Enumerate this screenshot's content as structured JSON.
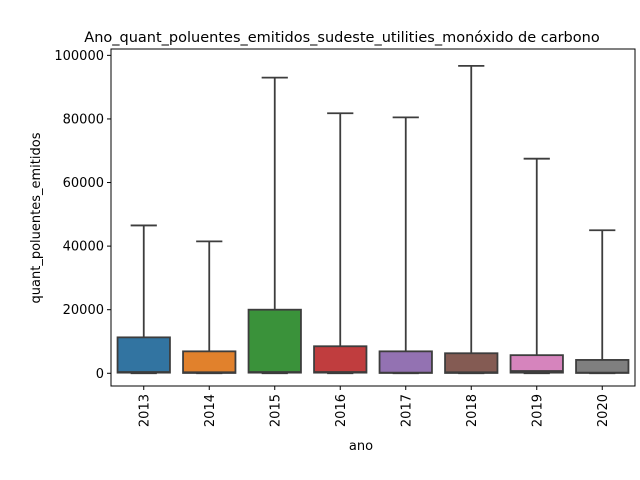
{
  "chart_data": {
    "type": "box",
    "title": "Ano_quant_poluentes_emitidos_sudeste_utilities_monóxido de carbono",
    "xlabel": "ano",
    "ylabel": "quant_poluentes_emitidos",
    "ylim": [
      -4000,
      102000
    ],
    "yticks": [
      0,
      20000,
      40000,
      60000,
      80000,
      100000
    ],
    "ytick_labels": [
      "0",
      "20000",
      "40000",
      "60000",
      "80000",
      "100000"
    ],
    "grid": false,
    "categories": [
      "2013",
      "2014",
      "2015",
      "2016",
      "2017",
      "2018",
      "2019",
      "2020"
    ],
    "boxes": [
      {
        "label": "2013",
        "whisker_low": 0,
        "q1": 200,
        "median": 400,
        "q3": 11300,
        "whisker_high": 46500,
        "color": "#3274a1"
      },
      {
        "label": "2014",
        "whisker_low": 0,
        "q1": 100,
        "median": 300,
        "q3": 6900,
        "whisker_high": 41500,
        "color": "#e1812c"
      },
      {
        "label": "2015",
        "whisker_low": 0,
        "q1": 200,
        "median": 400,
        "q3": 20000,
        "whisker_high": 93000,
        "color": "#3a923a"
      },
      {
        "label": "2016",
        "whisker_low": 0,
        "q1": 200,
        "median": 400,
        "q3": 8500,
        "whisker_high": 81800,
        "color": "#c03d3e"
      },
      {
        "label": "2017",
        "whisker_low": 0,
        "q1": 100,
        "median": 200,
        "q3": 6900,
        "whisker_high": 80500,
        "color": "#9372b2"
      },
      {
        "label": "2018",
        "whisker_low": 0,
        "q1": 100,
        "median": 300,
        "q3": 6300,
        "whisker_high": 96700,
        "color": "#845b53"
      },
      {
        "label": "2019",
        "whisker_low": 0,
        "q1": 200,
        "median": 700,
        "q3": 5700,
        "whisker_high": 67500,
        "color": "#d684bd"
      },
      {
        "label": "2020",
        "whisker_low": 0,
        "q1": 100,
        "median": 200,
        "q3": 4200,
        "whisker_high": 45000,
        "color": "#7f7f7f"
      }
    ]
  }
}
